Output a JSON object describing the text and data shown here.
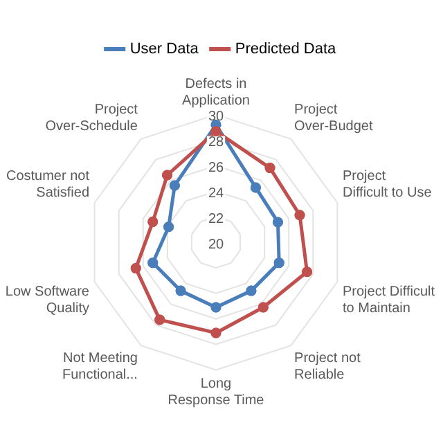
{
  "chart_data": {
    "type": "radar",
    "categories": [
      "Defects in Application",
      "Project Over-Budget",
      "Project Difficult to Use",
      "Project Difficult to Maintain",
      "Project not Reliable",
      "Long Response Time",
      "Not Meeting Functional...",
      "Low Software Quality",
      "Costumer not Satisfied",
      "Project Over-Schedule"
    ],
    "series": [
      {
        "name": "User Data",
        "color": "#4a7ebb",
        "values": [
          29.2,
          25.3,
          25.1,
          25.2,
          24.7,
          25.1,
          24.7,
          25.2,
          23.9,
          25.5
        ]
      },
      {
        "name": "Predicted Data",
        "color": "#c0504d",
        "values": [
          28.7,
          27.2,
          26.9,
          27.5,
          26.3,
          27.1,
          27.5,
          26.6,
          25.2,
          26.5
        ]
      }
    ],
    "ylim": [
      20,
      30
    ],
    "yticks": [
      20,
      22,
      24,
      26,
      28,
      30
    ],
    "grid": true,
    "legend": "top",
    "marker": "circle",
    "line_style": "solid"
  }
}
